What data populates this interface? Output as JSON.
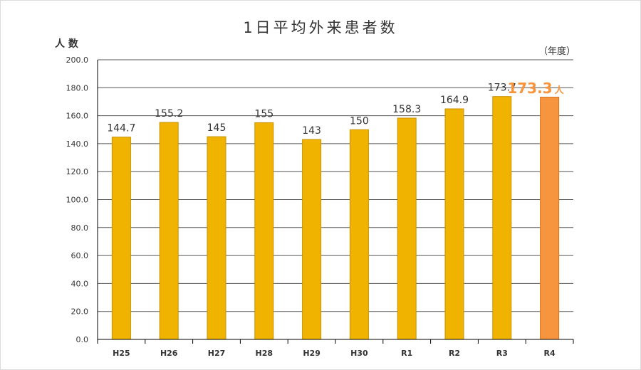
{
  "chart_data": {
    "type": "bar",
    "title": "1日平均外来患者数",
    "ylabel": "人 数",
    "xlabel": "（年度）",
    "categories": [
      "H25",
      "H26",
      "H27",
      "H28",
      "H29",
      "H30",
      "R1",
      "R2",
      "R3",
      "R4"
    ],
    "values": [
      144.7,
      155.2,
      145,
      155,
      143,
      150,
      158.3,
      164.9,
      173.7,
      173.3
    ],
    "value_labels": [
      "144.7",
      "155.2",
      "145",
      "155",
      "143",
      "150",
      "158.3",
      "164.9",
      "173.7",
      "173.3"
    ],
    "highlight_index": 9,
    "highlight_unit": "人",
    "ylim": [
      0,
      200
    ],
    "yticks": [
      0,
      20,
      40,
      60,
      80,
      100,
      120,
      140,
      160,
      180,
      200
    ],
    "ytick_labels": [
      "0.0",
      "20.0",
      "40.0",
      "60.0",
      "80.0",
      "100.0",
      "120.0",
      "140.0",
      "160.0",
      "180.0",
      "200.0"
    ],
    "grid": true,
    "colors": {
      "bar": "#f0b400",
      "bar_edge": "#c99100",
      "highlight_bar": "#f7953f",
      "highlight_edge": "#d97320",
      "highlight_text": "#f7953f",
      "text": "#333333",
      "grid": "#555555"
    }
  }
}
